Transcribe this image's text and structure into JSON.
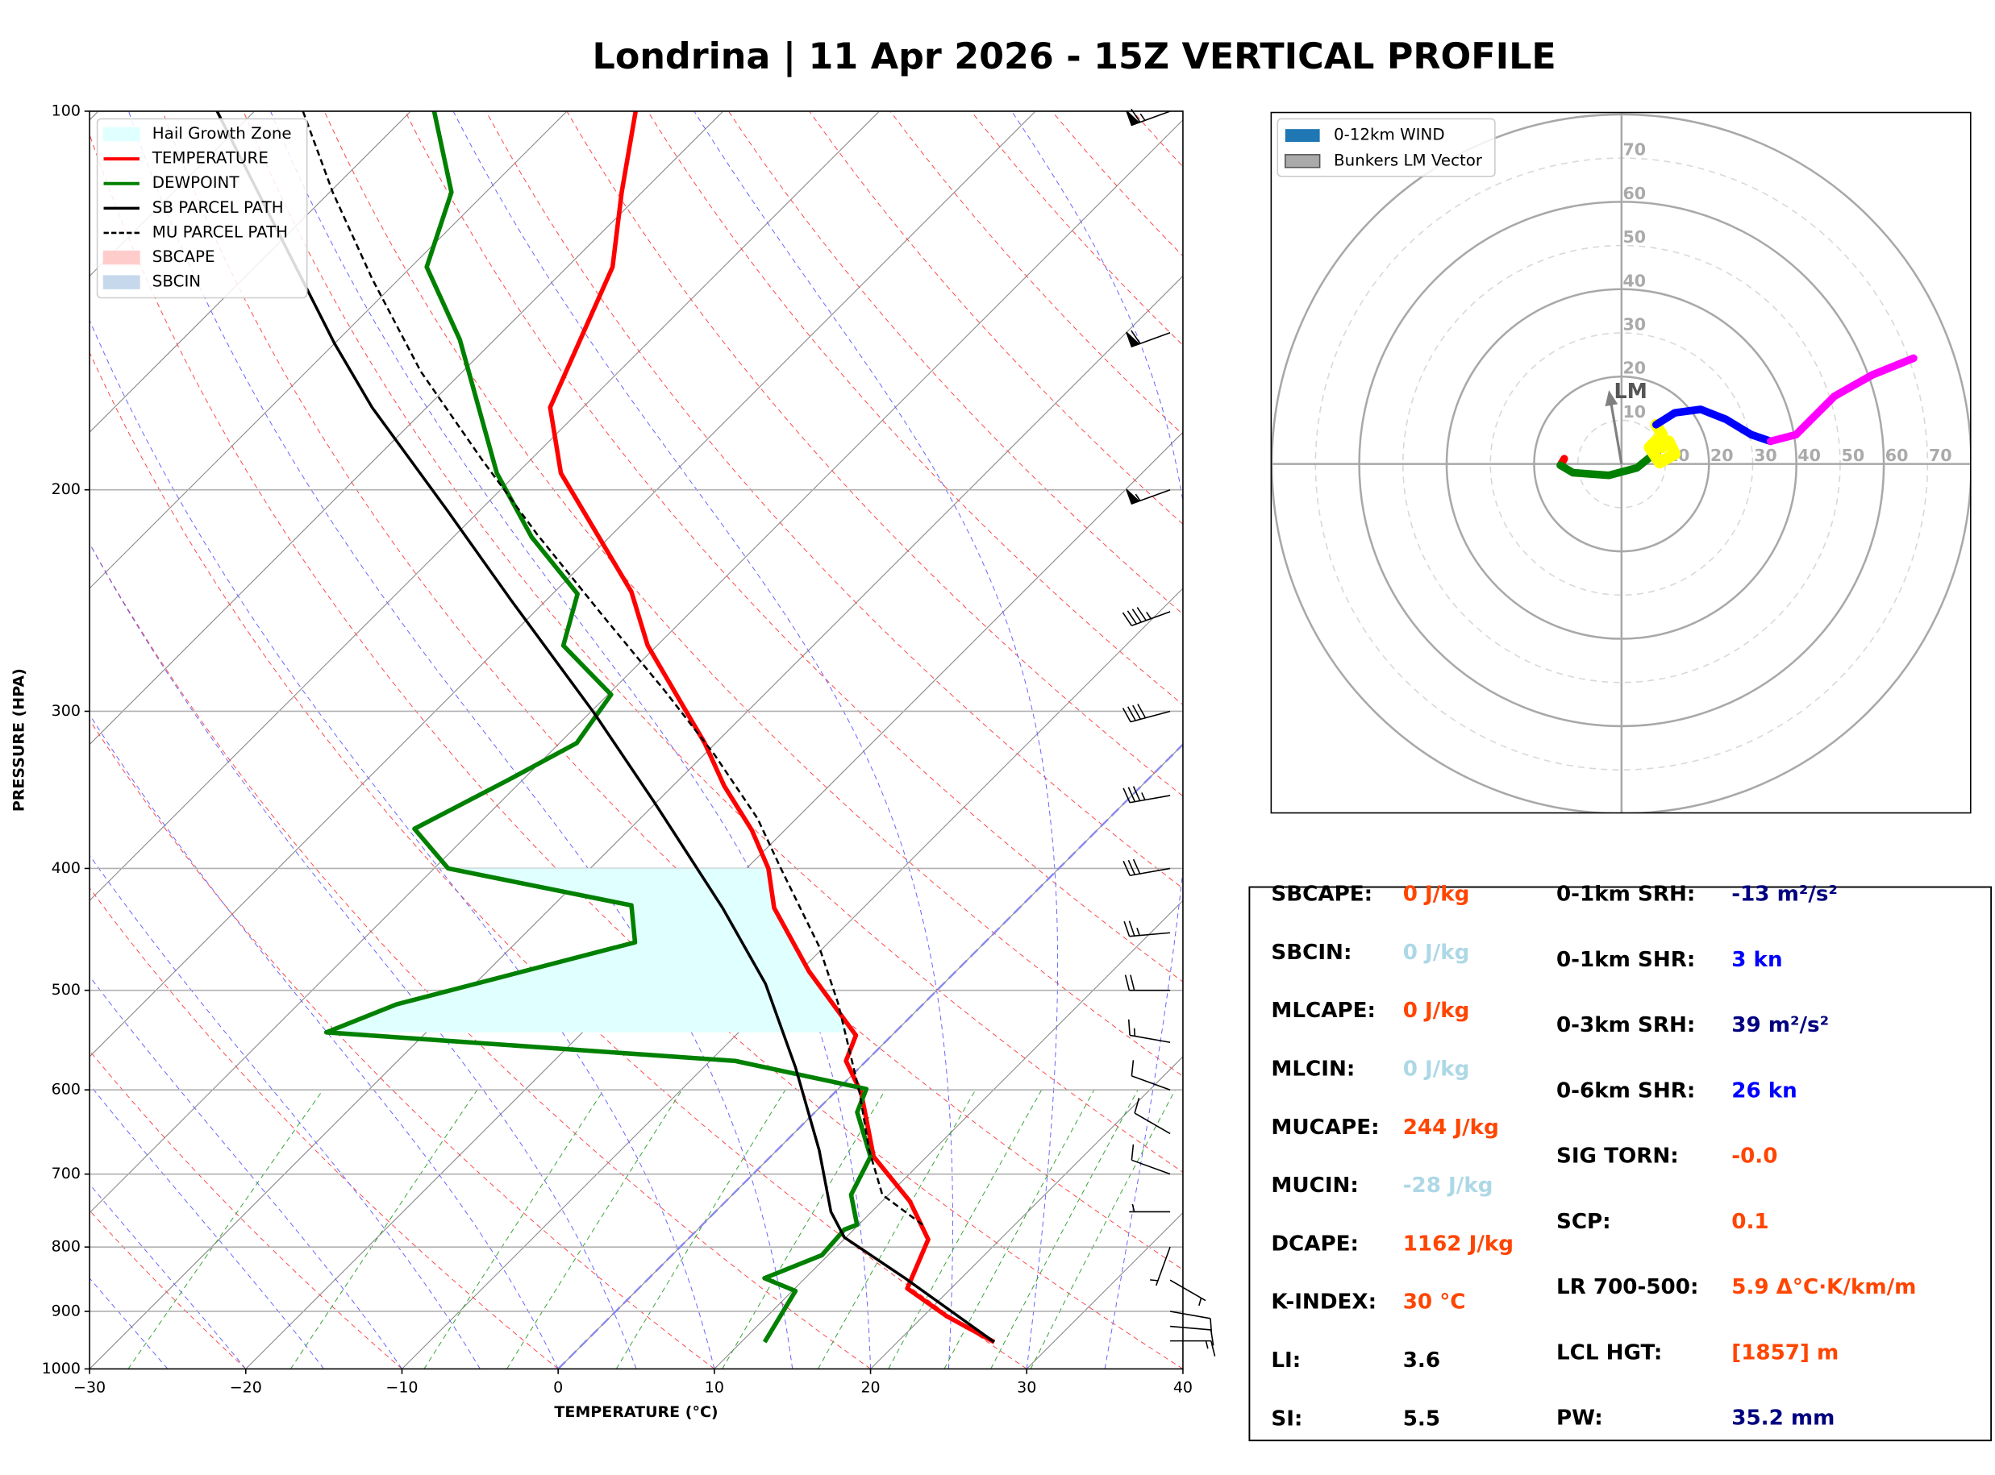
{
  "title": "Londrina | 11 Apr 2026 - 15Z VERTICAL PROFILE",
  "chart_data": [
    {
      "type": "skewt",
      "xlabel": "TEMPERATURE (°C)",
      "ylabel": "PRESSURE (HPA)",
      "xlim": [
        -30,
        40
      ],
      "ylim": [
        1000,
        100
      ],
      "yscale": "log",
      "grid": true,
      "legend": "upper left",
      "xticks": [
        {
          "value": -30,
          "label": "−30"
        },
        {
          "value": -20,
          "label": "−20"
        },
        {
          "value": -10,
          "label": "−10"
        },
        0,
        10,
        20,
        30,
        40
      ],
      "yticks": [
        1000,
        900,
        800,
        700,
        600,
        500,
        400,
        300,
        200,
        100
      ],
      "freezing_isotherm": 0,
      "hail_growth_zone": {
        "name": "Hail Growth Zone",
        "color": "#e0ffff",
        "pressure": [
          540,
          400
        ]
      },
      "series": [
        {
          "name": "TEMPERATURE",
          "color": "#ff0000",
          "style": "solid",
          "linewidth": 3.5,
          "pressure": [
            952,
            908,
            863,
            789,
            736,
            678,
            603,
            569,
            543,
            483,
            430,
            400,
            373,
            344,
            318,
            266,
            241,
            194,
            172,
            133,
            116,
            100
          ],
          "values": [
            26.2,
            21.5,
            17.2,
            15.4,
            11.8,
            6.6,
            1.7,
            -1.3,
            -2.3,
            -9.4,
            -15.7,
            -18.6,
            -22.1,
            -26.7,
            -30.7,
            -40.6,
            -45.1,
            -57.2,
            -62.1,
            -67.1,
            -71.3,
            -75.6
          ]
        },
        {
          "name": "DEWPOINT",
          "color": "#008000",
          "style": "solid",
          "linewidth": 3.5,
          "pressure": [
            952,
            867,
            847,
            812,
            775,
            768,
            727,
            678,
            625,
            599,
            569,
            540,
            513,
            458,
            428,
            400,
            372,
            340,
            318,
            291,
            266,
            242,
            218,
            194,
            152,
            133,
            116,
            100
          ],
          "values": [
            11.5,
            10.2,
            7.4,
            9.6,
            9.4,
            9.9,
            7.6,
            6.4,
            2.7,
            1.8,
            -8.4,
            -36.4,
            -33.7,
            -22.4,
            -25.0,
            -39.1,
            -43.8,
            -40.9,
            -38.9,
            -39.8,
            -46.0,
            -48.4,
            -55.0,
            -61.3,
            -72.2,
            -79.0,
            -82.2,
            -88.5
          ]
        },
        {
          "name": "SB PARCEL PATH",
          "color": "#000000",
          "style": "solid",
          "linewidth": 2.2,
          "pressure": [
            952,
            847,
            786,
            750,
            670,
            576,
            494,
            430,
            354,
            301,
            245,
            208,
            172,
            153,
            100
          ],
          "values": [
            26.2,
            16.4,
            9.9,
            7.4,
            2.7,
            -4.1,
            -11.4,
            -19.0,
            -30.2,
            -39.7,
            -52.2,
            -62.0,
            -73.5,
            -80.0,
            -102.4
          ]
        },
        {
          "name": "MU PARCEL PATH",
          "color": "#000000",
          "style": "dashed",
          "linewidth": 1.6,
          "pressure": [
            768,
            727,
            670,
            603,
            512,
            461,
            400,
            365,
            325,
            289,
            251,
            217,
            189,
            161,
            136,
            116,
            100
          ],
          "values": [
            14.1,
            9.6,
            5.9,
            1.6,
            -5.5,
            -10.4,
            -17.8,
            -22.5,
            -29.3,
            -36.6,
            -45.6,
            -54.8,
            -63.2,
            -72.7,
            -81.7,
            -89.8,
            -96.9
          ]
        }
      ],
      "areas": [
        {
          "name": "SBCAPE",
          "color": "#ffcccc"
        },
        {
          "name": "SBCIN",
          "color": "#c6d9ec"
        }
      ],
      "wind_barbs": {
        "pressure": [
          950,
          925,
          900,
          850,
          800,
          750,
          700,
          650,
          600,
          550,
          500,
          450,
          400,
          350,
          300,
          250,
          200,
          150,
          100
        ],
        "speed": [
          13,
          12,
          10,
          5,
          3,
          5,
          10,
          12,
          12,
          14,
          20,
          25,
          30,
          35,
          40,
          45,
          55,
          60,
          65
        ],
        "direction": [
          90,
          95,
          100,
          120,
          200,
          270,
          290,
          300,
          290,
          280,
          270,
          265,
          260,
          260,
          255,
          250,
          250,
          250,
          250
        ]
      }
    },
    {
      "type": "hodograph",
      "rlim": 80,
      "rticks": [
        10,
        20,
        30,
        40,
        50,
        60,
        70
      ],
      "legend": "upper left",
      "wind_legend": {
        "name": "0-12km WIND",
        "color": "#1f77b4"
      },
      "segments": [
        {
          "color": "#ff0000",
          "u": [
            -13.1,
            -14.0
          ],
          "v": [
            1.2,
            -0.3
          ]
        },
        {
          "color": "#008000",
          "u": [
            -14.0,
            -11.1,
            -2.9,
            3.5,
            9.3
          ],
          "v": [
            -0.3,
            -2.0,
            -2.6,
            -0.9,
            3.8
          ]
        },
        {
          "color": "#ffff00",
          "u": [
            9.3,
            10.8,
            12.2,
            8.7,
            6.4,
            9.3,
            7.9
          ],
          "v": [
            3.8,
            5.2,
            2.3,
            0.3,
            3.8,
            6.7,
            9.0
          ]
        },
        {
          "color": "#0000ff",
          "u": [
            7.9,
            12.2,
            18.1,
            23.9,
            29.7,
            34.1
          ],
          "v": [
            9.0,
            11.7,
            12.5,
            10.2,
            6.7,
            5.2
          ]
        },
        {
          "color": "#ff00ff",
          "u": [
            34.1,
            39.9,
            48.7,
            57.4,
            66.8
          ],
          "v": [
            5.2,
            6.7,
            15.5,
            20.4,
            24.2
          ]
        }
      ],
      "storm_motion": {
        "name": "Bunkers LM Vector",
        "label": "LM",
        "u": -2.9,
        "v": 16.9,
        "color": "#808080"
      }
    }
  ],
  "parameters": {
    "left": [
      {
        "label": "SBCAPE:",
        "value": "0 J/kg",
        "color": "#ff4500"
      },
      {
        "label": "SBCIN:",
        "value": "0 J/kg",
        "color": "#add8e6"
      },
      {
        "label": "MLCAPE:",
        "value": "0 J/kg",
        "color": "#ff4500"
      },
      {
        "label": "MLCIN:",
        "value": "0 J/kg",
        "color": "#add8e6"
      },
      {
        "label": "MUCAPE:",
        "value": "244 J/kg",
        "color": "#ff4500"
      },
      {
        "label": "MUCIN:",
        "value": "-28 J/kg",
        "color": "#add8e6"
      },
      {
        "label": "DCAPE:",
        "value": "1162 J/kg",
        "color": "#ff4500"
      },
      {
        "label": "K-INDEX:",
        "value": "30 °C",
        "color": "#ff4500"
      },
      {
        "label": "LI:",
        "value": "3.6",
        "color": "#000000"
      },
      {
        "label": "SI:",
        "value": "5.5",
        "color": "#000000"
      }
    ],
    "right": [
      {
        "label": "0-1km SRH:",
        "value": "-13 m²/s²",
        "color": "#000080"
      },
      {
        "label": "0-1km SHR:",
        "value": "3 kn",
        "color": "#0000ff"
      },
      {
        "label": "0-3km SRH:",
        "value": "39 m²/s²",
        "color": "#000080"
      },
      {
        "label": "0-6km SHR:",
        "value": "26 kn",
        "color": "#0000ff"
      },
      {
        "label": "SIG TORN:",
        "value": "-0.0",
        "color": "#ff4500"
      },
      {
        "label": "SCP:",
        "value": "0.1",
        "color": "#ff4500"
      },
      {
        "label": "LR 700-500:",
        "value": "5.9 Δ°C·K/km/m",
        "color": "#ff4500"
      },
      {
        "label": "LCL HGT:",
        "value": "[1857] m",
        "color": "#ff4500"
      },
      {
        "label": "PW:",
        "value": "35.2 mm",
        "color": "#000080"
      }
    ]
  }
}
